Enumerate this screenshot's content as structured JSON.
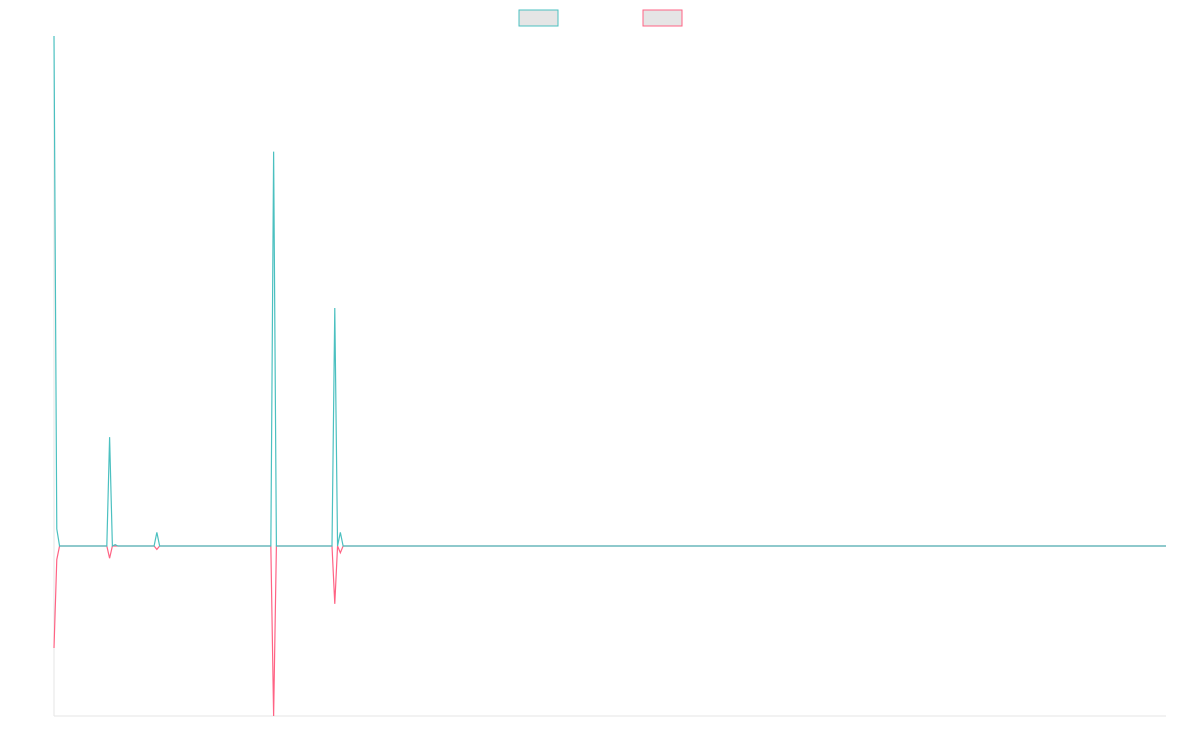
{
  "chart_data": {
    "type": "line",
    "x": [
      0,
      1,
      2,
      19,
      20,
      21,
      22,
      23,
      36,
      37,
      38,
      78,
      79,
      80,
      100,
      101,
      102,
      103,
      104,
      400
    ],
    "xlim": [
      0,
      400
    ],
    "ylim": [
      -25,
      75
    ],
    "series": [
      {
        "color": "#4bc0c0",
        "values": [
          75,
          2.5,
          0,
          0,
          16,
          0,
          0.2,
          0,
          0,
          2,
          0,
          0,
          58,
          0,
          0,
          35,
          0,
          2,
          0,
          0
        ]
      },
      {
        "color": "#ff6384",
        "values": [
          -15,
          -2,
          0,
          0,
          -1.8,
          0,
          0,
          0,
          0,
          -0.5,
          0,
          0,
          -25,
          0,
          0,
          -8.5,
          0,
          -1,
          0,
          0
        ]
      }
    ]
  }
}
